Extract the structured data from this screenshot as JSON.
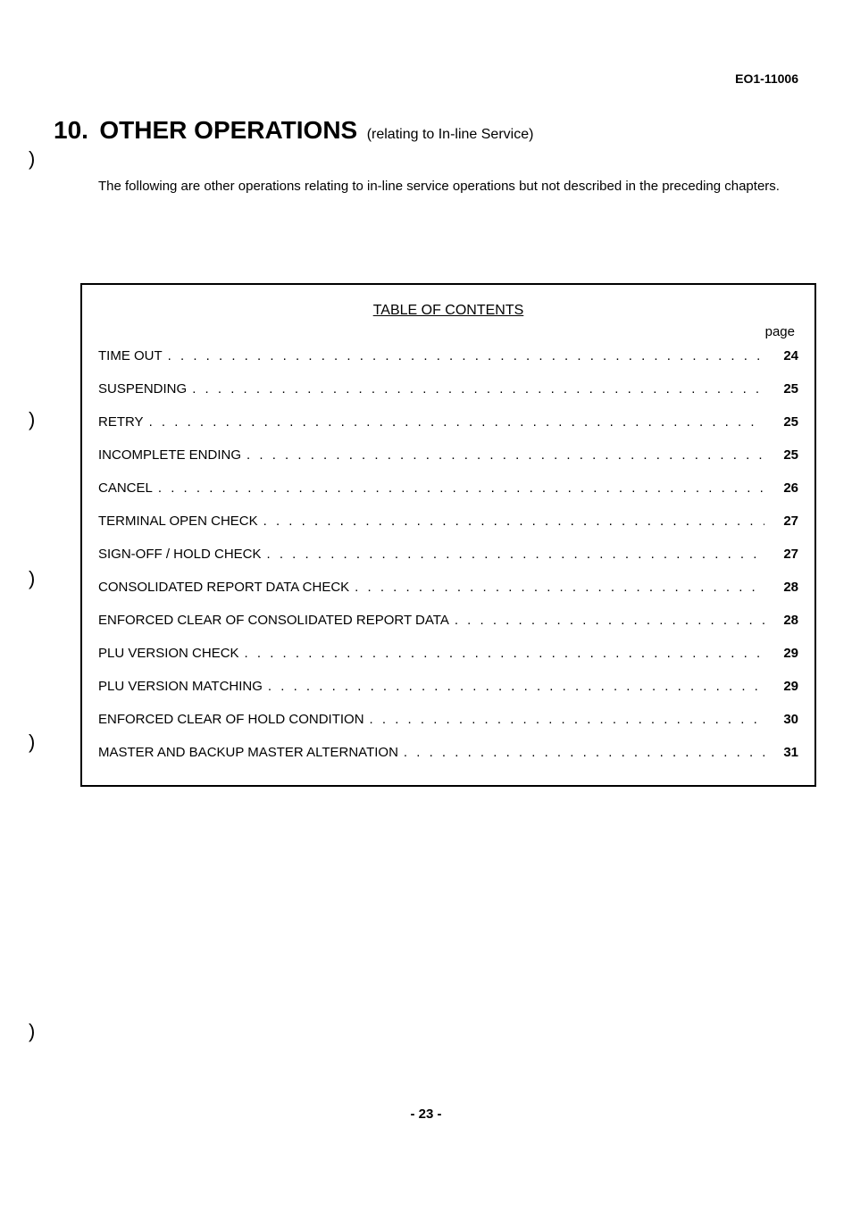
{
  "header": {
    "doc_id": "EO1-11006"
  },
  "chapter": {
    "number": "10.",
    "title_main": "OTHER OPERATIONS",
    "title_sub": "(relating to In-line Service)"
  },
  "intro": "The following are other operations relating to in-line service operations but not described in the preceding chapters.",
  "toc": {
    "title": "TABLE OF CONTENTS",
    "page_header": "page",
    "items": [
      {
        "label": "TIME OUT",
        "page": "24"
      },
      {
        "label": "SUSPENDING",
        "page": "25"
      },
      {
        "label": "RETRY",
        "page": "25"
      },
      {
        "label": "INCOMPLETE ENDING",
        "page": "25"
      },
      {
        "label": "CANCEL",
        "page": "26"
      },
      {
        "label": "TERMINAL OPEN CHECK",
        "page": "27"
      },
      {
        "label": "SIGN-OFF / HOLD CHECK",
        "page": "27"
      },
      {
        "label": "CONSOLIDATED REPORT DATA CHECK",
        "page": "28"
      },
      {
        "label": "ENFORCED CLEAR OF CONSOLIDATED REPORT DATA",
        "page": "28"
      },
      {
        "label": "PLU VERSION CHECK",
        "page": "29"
      },
      {
        "label": "PLU VERSION MATCHING",
        "page": "29"
      },
      {
        "label": "ENFORCED CLEAR OF HOLD CONDITION",
        "page": "30"
      },
      {
        "label": "MASTER AND BACKUP MASTER ALTERNATION",
        "page": "31"
      }
    ]
  },
  "footer": {
    "page_number": "- 23 -"
  },
  "parens": [
    ")",
    ")",
    ")",
    ")",
    ")"
  ]
}
